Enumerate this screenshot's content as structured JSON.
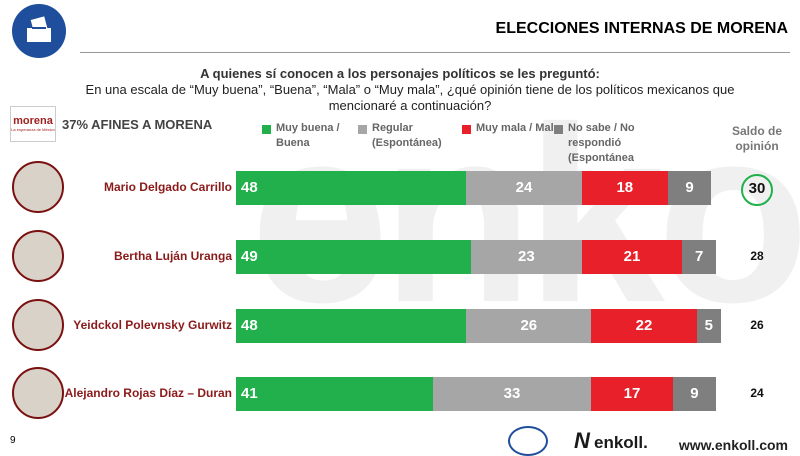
{
  "header": {
    "title": "ELECCIONES INTERNAS DE MORENA"
  },
  "question_intro": "A quienes sí conocen a los personajes políticos se les preguntó:",
  "question": "En una escala de “Muy buena”, “Buena”, “Mala” o “Muy mala”, ¿qué opinión tiene de los políticos mexicanos que mencionaré a continuación?",
  "party_logo": {
    "name": "morena",
    "tagline": "La esperanza de México"
  },
  "watermark": "enkoll.",
  "chart_data": {
    "type": "bar",
    "orientation": "horizontal",
    "stacked": true,
    "title": "37% AFINES A MORENA",
    "categories": [
      "Mario Delgado Carrillo",
      "Bertha Luján Uranga",
      "Yeidckol Polevnsky Gurwitz",
      "Alejandro Rojas Díaz – Duran"
    ],
    "series": [
      {
        "name": "Muy buena / Buena",
        "color": "#21b04b",
        "values": [
          48,
          49,
          48,
          41
        ]
      },
      {
        "name": "Regular (Espontánea)",
        "color": "#a6a6a6",
        "values": [
          24,
          23,
          26,
          33
        ]
      },
      {
        "name": "Muy mala / Mala",
        "color": "#e8202a",
        "values": [
          18,
          21,
          22,
          17
        ]
      },
      {
        "name": "No sabe / No respondió (Espontánea",
        "color": "#7f7f7f",
        "values": [
          9,
          7,
          5,
          9
        ]
      }
    ],
    "balance": {
      "title": "Saldo de opinión",
      "values": [
        30,
        28,
        26,
        24
      ],
      "highlight_color": "#21b04b"
    }
  },
  "footer": {
    "page": "9",
    "logo": "enkoll.",
    "url": "www.enkoll.com"
  }
}
